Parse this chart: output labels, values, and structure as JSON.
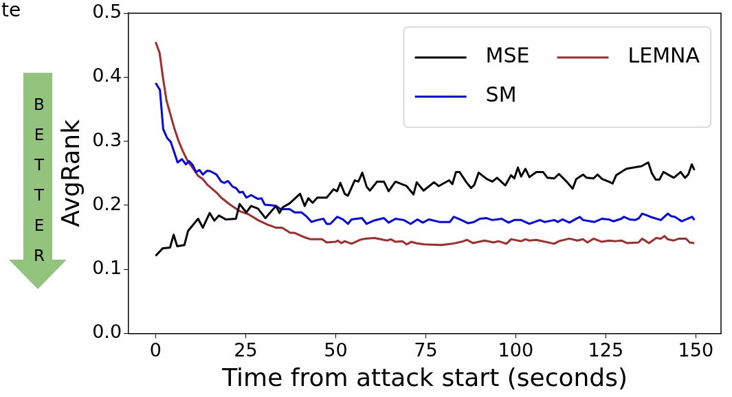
{
  "chart_data": {
    "type": "line",
    "xlabel": "Time from attack start (seconds)",
    "ylabel": "AvgRank",
    "xlim": [
      -7.5,
      157
    ],
    "xticks": [
      0,
      25,
      50,
      75,
      100,
      125,
      150
    ],
    "ylim": [
      0,
      0.5
    ],
    "yticks": [
      {
        "value": 0,
        "label": "0.0"
      },
      0.1,
      0.2,
      0.3,
      0.4,
      0.5
    ],
    "grid": false,
    "legend": "top right",
    "line_style": "solid",
    "marker": "none",
    "annotations": [
      "te",
      "BETTER"
    ],
    "series": [
      {
        "name": "MSE",
        "color": "#000000",
        "x": [
          0,
          2,
          4,
          5,
          6,
          8,
          9,
          11.8,
          13.1,
          15,
          16.3,
          17.6,
          19.5,
          22.3,
          23.3,
          25.2,
          26.5,
          28.4,
          30.5,
          33.4,
          34.4,
          35.3,
          37.2,
          40.1,
          41.4,
          42.4,
          43.6,
          44.9,
          47.5,
          49.4,
          50.4,
          51.3,
          52.5,
          53.4,
          55.3,
          56.3,
          57.4,
          58.6,
          59.5,
          61.5,
          63.4,
          64.7,
          66.6,
          69.7,
          71.6,
          72.5,
          74.4,
          77.3,
          78.6,
          81.5,
          82.4,
          83.4,
          84.4,
          86.3,
          87.6,
          88.5,
          89.7,
          92,
          93.5,
          94.8,
          97.1,
          98.7,
          99.6,
          100.6,
          101.5,
          102.7,
          103.8,
          105.7,
          107.6,
          108.8,
          110.7,
          112,
          114.3,
          115.8,
          116.8,
          118.7,
          119.7,
          121.6,
          122.7,
          124,
          125.8,
          126.9,
          127.9,
          130.7,
          132.6,
          134.9,
          136.8,
          137.8,
          138.9,
          139.9,
          141,
          143.9,
          145.8,
          147,
          147.9,
          148.9,
          149.6
        ],
        "values": [
          0.121,
          0.133,
          0.134,
          0.154,
          0.136,
          0.138,
          0.16,
          0.179,
          0.165,
          0.188,
          0.176,
          0.184,
          0.178,
          0.179,
          0.202,
          0.189,
          0.199,
          0.195,
          0.18,
          0.199,
          0.188,
          0.197,
          0.203,
          0.218,
          0.199,
          0.211,
          0.204,
          0.212,
          0.212,
          0.225,
          0.222,
          0.235,
          0.218,
          0.215,
          0.239,
          0.237,
          0.251,
          0.229,
          0.223,
          0.237,
          0.237,
          0.222,
          0.237,
          0.23,
          0.217,
          0.236,
          0.223,
          0.236,
          0.23,
          0.239,
          0.233,
          0.252,
          0.252,
          0.236,
          0.227,
          0.232,
          0.251,
          0.241,
          0.237,
          0.243,
          0.231,
          0.247,
          0.242,
          0.259,
          0.245,
          0.257,
          0.244,
          0.252,
          0.252,
          0.243,
          0.242,
          0.249,
          0.236,
          0.226,
          0.241,
          0.248,
          0.243,
          0.242,
          0.248,
          0.241,
          0.237,
          0.234,
          0.247,
          0.257,
          0.259,
          0.261,
          0.267,
          0.25,
          0.24,
          0.24,
          0.252,
          0.243,
          0.252,
          0.243,
          0.248,
          0.264,
          0.255
        ]
      },
      {
        "name": "SM",
        "color": "#0000ff",
        "x": [
          0,
          1.2,
          2.1,
          3.2,
          4.2,
          6.1,
          7.3,
          8.4,
          9.3,
          10.3,
          11.2,
          12.2,
          13.1,
          14.3,
          15.3,
          16.9,
          18.2,
          19.1,
          20.1,
          21.4,
          22.3,
          23.3,
          24.2,
          25.2,
          26.5,
          28.4,
          29.4,
          30.3,
          32.4,
          33.4,
          34.7,
          37.2,
          38.6,
          40.5,
          42,
          43.3,
          44.9,
          46.6,
          47.5,
          48.5,
          50.4,
          52,
          53.4,
          54.4,
          57.3,
          58.6,
          60.5,
          63.4,
          64.7,
          66.6,
          68.9,
          70.8,
          72.7,
          74.2,
          75.9,
          78.8,
          81.7,
          82.8,
          84.5,
          86.8,
          88.4,
          90,
          91.9,
          93.5,
          96.1,
          98,
          99.6,
          101.5,
          103.8,
          106.7,
          108,
          110.7,
          111.7,
          113,
          114.9,
          116.5,
          117.8,
          118.7,
          121.9,
          123.9,
          125.8,
          127.1,
          129.3,
          130,
          131.6,
          133.2,
          134.2,
          135.1,
          136.1,
          137.4,
          140.3,
          142.2,
          143.2,
          144.2,
          146.1,
          147.7,
          149,
          149.6
        ],
        "values": [
          0.391,
          0.38,
          0.319,
          0.305,
          0.299,
          0.267,
          0.272,
          0.264,
          0.269,
          0.263,
          0.252,
          0.255,
          0.248,
          0.254,
          0.253,
          0.248,
          0.237,
          0.235,
          0.238,
          0.229,
          0.227,
          0.22,
          0.221,
          0.212,
          0.216,
          0.21,
          0.211,
          0.201,
          0.2,
          0.199,
          0.194,
          0.194,
          0.189,
          0.189,
          0.182,
          0.174,
          0.177,
          0.179,
          0.171,
          0.171,
          0.182,
          0.178,
          0.171,
          0.178,
          0.18,
          0.171,
          0.176,
          0.18,
          0.173,
          0.179,
          0.177,
          0.171,
          0.178,
          0.173,
          0.178,
          0.174,
          0.174,
          0.182,
          0.178,
          0.172,
          0.174,
          0.179,
          0.18,
          0.177,
          0.179,
          0.173,
          0.177,
          0.177,
          0.171,
          0.177,
          0.174,
          0.177,
          0.174,
          0.178,
          0.173,
          0.178,
          0.182,
          0.177,
          0.174,
          0.179,
          0.178,
          0.175,
          0.179,
          0.182,
          0.178,
          0.177,
          0.18,
          0.187,
          0.185,
          0.182,
          0.177,
          0.187,
          0.183,
          0.182,
          0.175,
          0.179,
          0.182,
          0.177
        ]
      },
      {
        "name": "LEMNA",
        "color": "#a52a2a",
        "x": [
          0,
          1.1,
          2.1,
          3,
          4,
          5.1,
          6.4,
          7.6,
          8.9,
          10.2,
          11.8,
          13.1,
          14.4,
          16.9,
          18.2,
          20.7,
          23.3,
          25.8,
          28.4,
          31,
          33.5,
          35.1,
          37.4,
          38.6,
          41.4,
          43,
          46.2,
          47.5,
          50,
          50.6,
          51.6,
          52.5,
          54.4,
          56.7,
          58.3,
          60.8,
          64.3,
          65.3,
          66.6,
          68.5,
          69.7,
          71,
          72.3,
          74.5,
          79.3,
          82.4,
          84.9,
          86.5,
          88.1,
          91.3,
          93.9,
          95.2,
          97.4,
          98.7,
          101.5,
          102.7,
          103.8,
          105.7,
          110.7,
          112,
          114.9,
          117.1,
          118.7,
          119.9,
          121.6,
          123.9,
          125.8,
          127.7,
          129.3,
          130.9,
          134.1,
          135.1,
          137,
          139,
          140.3,
          141.3,
          142.2,
          143.8,
          145.4,
          147.3,
          148.3,
          149.6
        ],
        "values": [
          0.455,
          0.438,
          0.397,
          0.364,
          0.344,
          0.322,
          0.3,
          0.284,
          0.269,
          0.259,
          0.246,
          0.241,
          0.232,
          0.22,
          0.212,
          0.201,
          0.191,
          0.186,
          0.177,
          0.17,
          0.165,
          0.165,
          0.157,
          0.157,
          0.15,
          0.147,
          0.147,
          0.142,
          0.143,
          0.145,
          0.141,
          0.144,
          0.14,
          0.146,
          0.148,
          0.149,
          0.145,
          0.147,
          0.143,
          0.144,
          0.139,
          0.143,
          0.141,
          0.139,
          0.138,
          0.14,
          0.143,
          0.146,
          0.141,
          0.145,
          0.142,
          0.144,
          0.14,
          0.147,
          0.144,
          0.147,
          0.145,
          0.146,
          0.14,
          0.144,
          0.148,
          0.145,
          0.147,
          0.142,
          0.148,
          0.143,
          0.145,
          0.144,
          0.145,
          0.141,
          0.142,
          0.148,
          0.141,
          0.149,
          0.148,
          0.152,
          0.147,
          0.145,
          0.148,
          0.148,
          0.142,
          0.141
        ]
      }
    ]
  }
}
